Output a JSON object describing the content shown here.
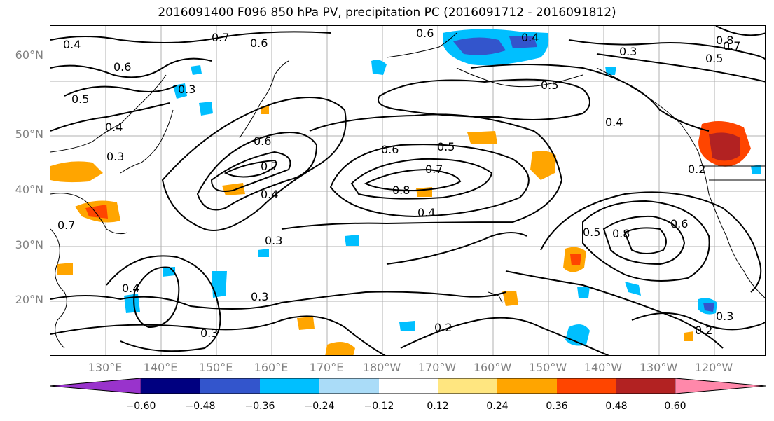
{
  "title": "2016091400 F096 850 hPa PV, precipitation PC (2016091712 - 2016091812)",
  "lat_labels": [
    "60°N",
    "50°N",
    "40°N",
    "30°N",
    "20°N"
  ],
  "lon_labels": [
    "130°E",
    "140°E",
    "150°E",
    "160°E",
    "170°E",
    "180°W",
    "170°W",
    "160°W",
    "150°W",
    "140°W",
    "130°W",
    "120°W"
  ],
  "contour_labels": [
    "0.7",
    "0.6",
    "0.6",
    "0.4",
    "0.6",
    "0.5",
    "0.4",
    "0.3",
    "0.3",
    "0.6",
    "0.7",
    "0.4",
    "0.6",
    "0.5",
    "0.7",
    "0.8",
    "0.4",
    "0.5",
    "0.4",
    "0.8",
    "0.6",
    "0.3",
    "0.4",
    "0.3",
    "0.3",
    "0.2",
    "0.2",
    "0.3",
    "0.5",
    "0.4",
    "0.8",
    "0.7",
    "0.5",
    "0.3",
    "0.7",
    "0.2"
  ],
  "colorbar": {
    "tick_labels": [
      "−0.60",
      "−0.48",
      "−0.36",
      "−0.24",
      "−0.12",
      "0.12",
      "0.24",
      "0.36",
      "0.48",
      "0.60"
    ],
    "colors": [
      "#9933cc",
      "#000080",
      "#3355cc",
      "#00bfff",
      "#aadcf8",
      "#ffffff",
      "#ffe680",
      "#ffa500",
      "#ff4500",
      "#b22222",
      "#ff88aa"
    ]
  }
}
